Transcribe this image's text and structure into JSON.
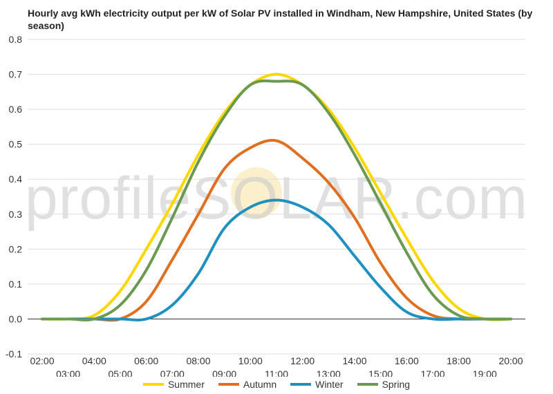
{
  "chart_data": {
    "type": "line",
    "title": "Hourly avg kWh electricity output per kW of Solar PV installed in Windham, New Hampshire, United States (by season)",
    "watermark": "profileSOLAR.com",
    "x": [
      "02:00",
      "03:00",
      "04:00",
      "05:00",
      "06:00",
      "07:00",
      "08:00",
      "09:00",
      "10:00",
      "11:00",
      "12:00",
      "13:00",
      "14:00",
      "15:00",
      "16:00",
      "17:00",
      "18:00",
      "19:00",
      "20:00"
    ],
    "ylim": [
      -0.1,
      0.8
    ],
    "yticks": [
      "0.8",
      "0.7",
      "0.6",
      "0.5",
      "0.4",
      "0.3",
      "0.2",
      "0.1",
      "0.0",
      "-0.1"
    ],
    "grid": true,
    "legend_position": "bottom",
    "series": [
      {
        "name": "Summer",
        "color": "#ffd700",
        "values": [
          0.0,
          0.0,
          0.01,
          0.08,
          0.2,
          0.33,
          0.47,
          0.59,
          0.67,
          0.7,
          0.67,
          0.6,
          0.49,
          0.36,
          0.23,
          0.11,
          0.03,
          0.0,
          0.0
        ]
      },
      {
        "name": "Autumn",
        "color": "#e07020",
        "values": [
          0.0,
          0.0,
          0.0,
          0.0,
          0.05,
          0.17,
          0.3,
          0.43,
          0.49,
          0.51,
          0.46,
          0.39,
          0.29,
          0.16,
          0.06,
          0.01,
          0.0,
          0.0,
          0.0
        ]
      },
      {
        "name": "Winter",
        "color": "#2090c0",
        "values": [
          0.0,
          0.0,
          0.0,
          0.0,
          0.0,
          0.04,
          0.13,
          0.26,
          0.32,
          0.34,
          0.32,
          0.27,
          0.18,
          0.09,
          0.02,
          0.0,
          0.0,
          0.0,
          0.0
        ]
      },
      {
        "name": "Spring",
        "color": "#6a9a50",
        "values": [
          0.0,
          0.0,
          0.0,
          0.04,
          0.14,
          0.29,
          0.45,
          0.58,
          0.67,
          0.68,
          0.67,
          0.59,
          0.47,
          0.33,
          0.19,
          0.07,
          0.01,
          0.0,
          0.0
        ]
      }
    ]
  }
}
